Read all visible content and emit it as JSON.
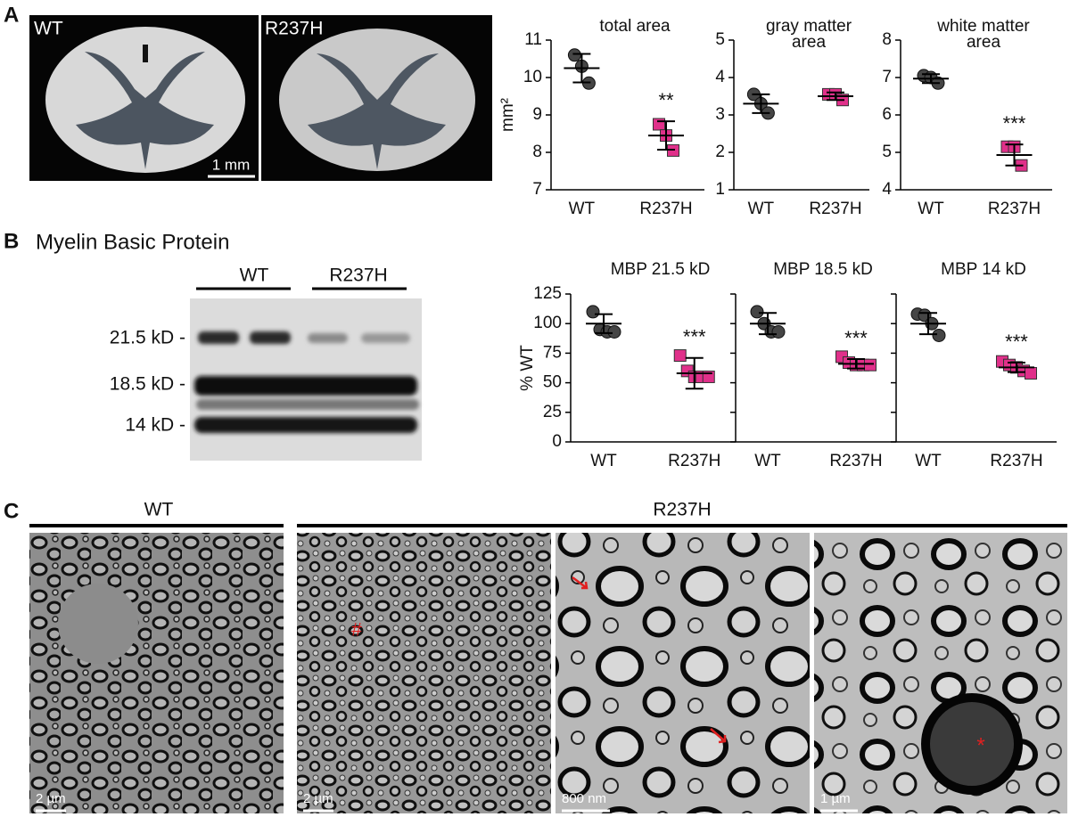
{
  "panel_labels": [
    "A",
    "B",
    "C"
  ],
  "panel_a": {
    "images": [
      {
        "label": "WT"
      },
      {
        "label": "R237H"
      }
    ],
    "scale_bar": "1 mm"
  },
  "panel_b": {
    "title": "Myelin Basic Protein",
    "lanes": [
      "WT",
      "R237H"
    ],
    "bands": [
      "21.5 kD -",
      "18.5 kD -",
      "14 kD -"
    ]
  },
  "panel_c": {
    "groups": [
      "WT",
      "R237H"
    ],
    "scale_bars": [
      "2 µm",
      "2 µm",
      "800 nm",
      "1 µm"
    ],
    "annotations": [
      "#",
      "*"
    ]
  },
  "chart_data": [
    {
      "type": "dotplot",
      "title": [
        "total area"
      ],
      "ylabel": "mm²",
      "categories": [
        "WT",
        "R237H"
      ],
      "values": [
        [
          10.6,
          10.3,
          9.85
        ],
        [
          8.75,
          8.45,
          8.05
        ]
      ],
      "means": [
        10.25,
        8.45
      ],
      "sd": [
        0.38,
        0.38
      ],
      "colors": [
        "#454545",
        "#e0308a"
      ],
      "markers": [
        "circle",
        "square"
      ],
      "annotation": "**",
      "ylim": [
        7,
        11
      ],
      "yticks": [
        7,
        8,
        9,
        10,
        11
      ],
      "show_tick_labels": true
    },
    {
      "type": "dotplot",
      "title": [
        "gray matter",
        "area"
      ],
      "categories": [
        "WT",
        "R237H"
      ],
      "values": [
        [
          3.55,
          3.3,
          3.05
        ],
        [
          3.55,
          3.55,
          3.4
        ]
      ],
      "means": [
        3.3,
        3.5
      ],
      "sd": [
        0.25,
        0.1
      ],
      "colors": [
        "#454545",
        "#e0308a"
      ],
      "markers": [
        "circle",
        "square"
      ],
      "ylim": [
        1,
        5
      ],
      "yticks": [
        1,
        2,
        3,
        4,
        5
      ],
      "show_tick_labels": true
    },
    {
      "type": "dotplot",
      "title": [
        "white matter",
        "area"
      ],
      "categories": [
        "WT",
        "R237H"
      ],
      "values": [
        [
          7.05,
          7.0,
          6.85
        ],
        [
          5.15,
          5.15,
          4.65
        ]
      ],
      "means": [
        6.97,
        4.93
      ],
      "sd": [
        0.12,
        0.28
      ],
      "colors": [
        "#454545",
        "#e0308a"
      ],
      "markers": [
        "circle",
        "square"
      ],
      "annotation": "***",
      "ylim": [
        4,
        8
      ],
      "yticks": [
        4,
        5,
        6,
        7,
        8
      ],
      "show_tick_labels": true
    },
    {
      "type": "dotplot",
      "title": [
        "MBP 21.5 kD"
      ],
      "ylabel": "% WT",
      "categories": [
        "WT",
        "R237H"
      ],
      "values": [
        [
          110,
          95,
          93,
          93
        ],
        [
          73,
          60,
          55,
          55,
          55
        ]
      ],
      "means": [
        100,
        58
      ],
      "sd": [
        8,
        13
      ],
      "colors": [
        "#454545",
        "#e0308a"
      ],
      "markers": [
        "circle",
        "square"
      ],
      "annotation": "***",
      "ylim": [
        0,
        125
      ],
      "yticks": [
        0,
        25,
        50,
        75,
        100,
        125
      ],
      "show_tick_labels": true
    },
    {
      "type": "dotplot",
      "title": [
        "MBP 18.5 kD"
      ],
      "categories": [
        "WT",
        "R237H"
      ],
      "values": [
        [
          110,
          100,
          93,
          93
        ],
        [
          72,
          67,
          65,
          65,
          65
        ]
      ],
      "means": [
        100,
        66
      ],
      "sd": [
        9,
        4
      ],
      "colors": [
        "#454545",
        "#e0308a"
      ],
      "markers": [
        "circle",
        "square"
      ],
      "annotation": "***",
      "ylim": [
        0,
        125
      ],
      "yticks": [
        0,
        25,
        50,
        75,
        100,
        125
      ],
      "show_tick_labels": false
    },
    {
      "type": "dotplot",
      "title": [
        "MBP 14 kD"
      ],
      "categories": [
        "WT",
        "R237H"
      ],
      "values": [
        [
          108,
          107,
          100,
          90
        ],
        [
          68,
          65,
          63,
          60,
          58
        ]
      ],
      "means": [
        100,
        63
      ],
      "sd": [
        9,
        4
      ],
      "colors": [
        "#454545",
        "#e0308a"
      ],
      "markers": [
        "circle",
        "square"
      ],
      "annotation": "***",
      "ylim": [
        0,
        125
      ],
      "yticks": [
        0,
        25,
        50,
        75,
        100,
        125
      ],
      "show_tick_labels": false
    }
  ]
}
